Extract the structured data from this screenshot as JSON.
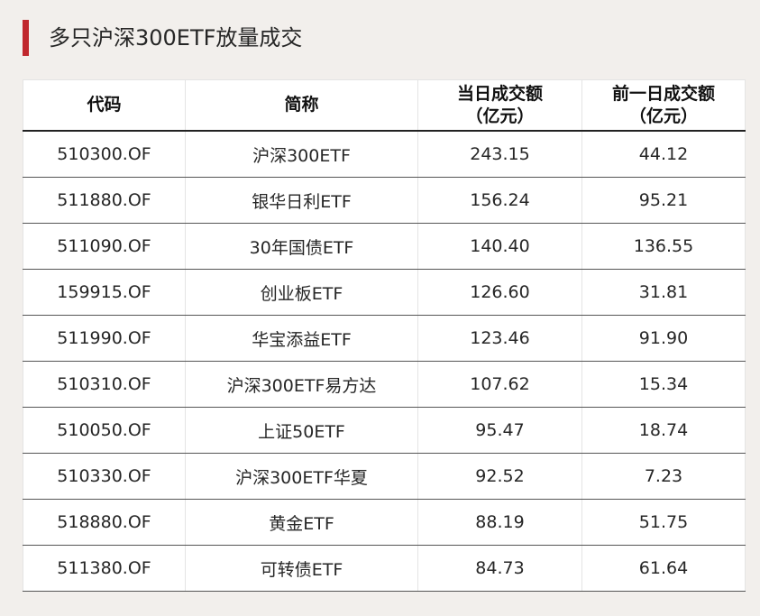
{
  "title": "多只沪深300ETF放量成交",
  "colors": {
    "accent": "#c0272d",
    "background": "#f2efec",
    "table_background": "#ffffff"
  },
  "table": {
    "headers": [
      "代码",
      "简称",
      "当日成交额\n（亿元）",
      "前一日成交额\n（亿元）"
    ],
    "rows": [
      [
        "510300.OF",
        "沪深300ETF",
        "243.15",
        "44.12"
      ],
      [
        "511880.OF",
        "银华日利ETF",
        "156.24",
        "95.21"
      ],
      [
        "511090.OF",
        "30年国债ETF",
        "140.40",
        "136.55"
      ],
      [
        "159915.OF",
        "创业板ETF",
        "126.60",
        "31.81"
      ],
      [
        "511990.OF",
        "华宝添益ETF",
        "123.46",
        "91.90"
      ],
      [
        "510310.OF",
        "沪深300ETF易方达",
        "107.62",
        "15.34"
      ],
      [
        "510050.OF",
        "上证50ETF",
        "95.47",
        "18.74"
      ],
      [
        "510330.OF",
        "沪深300ETF华夏",
        "92.52",
        "7.23"
      ],
      [
        "518880.OF",
        "黄金ETF",
        "88.19",
        "51.75"
      ],
      [
        "511380.OF",
        "可转债ETF",
        "84.73",
        "61.64"
      ]
    ]
  }
}
